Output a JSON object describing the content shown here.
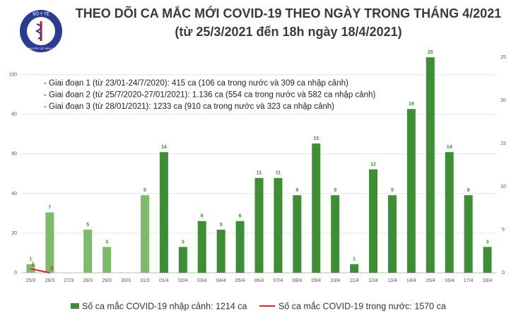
{
  "logo": {
    "top": "BỘ Y TẾ",
    "bottom": "MINISTRY OF HEALTH"
  },
  "chart_data": {
    "type": "bar-line",
    "title": "THEO DÕI CA MẮC MỚI COVID-19 THEO NGÀY TRONG THÁNG 4/2021",
    "subtitle": "(từ 25/3/2021 đến 18h ngày 18/4/2021)",
    "annotations": [
      "- Giai đoạn 1 (từ 23/01-24/7/2020): 415 ca (106 ca trong nước và 309 ca nhập cảnh)",
      "- Giai đoạn 2 (từ 25/7/2020-27/01/2021): 1.136 ca (554 ca trong nước và 582 ca nhập cảnh)",
      "- Giai đoạn 3 (từ 28/01/2021): 1233 ca (910 ca trong nước và 323 ca nhập cảnh)"
    ],
    "categories": [
      "25/3",
      "26/3",
      "27/3",
      "28/3",
      "29/3",
      "30/3",
      "31/3",
      "01/4",
      "02/4",
      "03/4",
      "04/4",
      "05/4",
      "06/4",
      "07/4",
      "08/4",
      "09/4",
      "10/4",
      "11/4",
      "12/4",
      "13/4",
      "14/4",
      "15/4",
      "16/4",
      "17/4",
      "18/4"
    ],
    "ylim": [
      0,
      111
    ],
    "yticks": [
      0,
      20,
      40,
      60,
      80,
      100
    ],
    "y2lim": [
      0,
      25.5
    ],
    "y2ticks": [
      0,
      5,
      10,
      15,
      20,
      25
    ],
    "grid": true,
    "series": [
      {
        "name": "Số ca mắc COVID-19 nhập cảnh: 1214 ca",
        "kind": "bar",
        "axis": "y2",
        "color": "#3e8e36",
        "colors": [
          "#7dbb6b",
          "#7dbb6b",
          "#7dbb6b",
          "#7dbb6b",
          "#7dbb6b",
          "#7dbb6b",
          "#7dbb6b",
          "#3e8e36",
          "#3e8e36",
          "#3e8e36",
          "#3e8e36",
          "#3e8e36",
          "#3e8e36",
          "#3e8e36",
          "#3e8e36",
          "#3e8e36",
          "#3e8e36",
          "#3e8e36",
          "#3e8e36",
          "#3e8e36",
          "#3e8e36",
          "#3e8e36",
          "#3e8e36",
          "#3e8e36",
          "#3e8e36"
        ],
        "values": [
          1,
          7,
          null,
          5,
          3,
          null,
          9,
          14,
          3,
          6,
          5,
          6,
          11,
          11,
          9,
          15,
          9,
          1,
          12,
          9,
          19,
          25,
          14,
          9,
          3
        ]
      },
      {
        "name": "Số ca mắc COVID-19 trong nước: 1570 ca",
        "kind": "line",
        "axis": "y",
        "color": "#e8231f",
        "values": [
          2,
          0,
          null,
          null,
          null,
          null,
          null,
          null,
          null,
          null,
          null,
          null,
          null,
          null,
          null,
          null,
          null,
          null,
          null,
          null,
          null,
          null,
          null,
          null,
          null
        ]
      }
    ]
  }
}
